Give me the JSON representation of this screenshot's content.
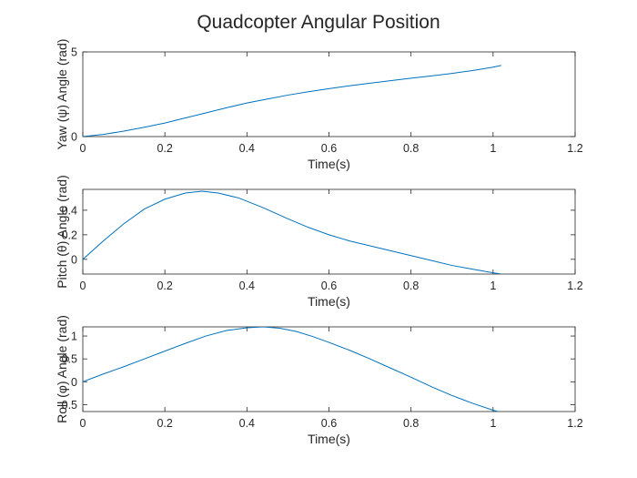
{
  "figure": {
    "title": "Quadcopter Angular Position"
  },
  "chart_data": [
    {
      "type": "line",
      "xlabel": "Time(s)",
      "ylabel": "Yaw (ψ) Angle (rad)",
      "xlim": [
        0,
        1.2
      ],
      "ylim": [
        0,
        5
      ],
      "xticks": [
        "0",
        "0.2",
        "0.4",
        "0.6",
        "0.8",
        "1",
        "1.2"
      ],
      "xtick_values": [
        0,
        0.2,
        0.4,
        0.6,
        0.8,
        1.0,
        1.2
      ],
      "yticks": [
        "0",
        "5"
      ],
      "ytick_values": [
        0,
        5
      ],
      "grid": false,
      "color": "#0072BD",
      "series": [
        {
          "x": [
            0,
            0.05,
            0.1,
            0.15,
            0.2,
            0.25,
            0.3,
            0.35,
            0.4,
            0.45,
            0.5,
            0.55,
            0.6,
            0.65,
            0.7,
            0.75,
            0.8,
            0.85,
            0.9,
            0.95,
            1.0,
            1.02
          ],
          "y": [
            0,
            0.13,
            0.32,
            0.55,
            0.8,
            1.1,
            1.4,
            1.7,
            1.98,
            2.22,
            2.45,
            2.65,
            2.83,
            3.0,
            3.15,
            3.3,
            3.45,
            3.58,
            3.73,
            3.9,
            4.1,
            4.2
          ]
        }
      ]
    },
    {
      "type": "line",
      "xlabel": "Time(s)",
      "ylabel": "Pitch (θ) Angle (rad)",
      "xlim": [
        0,
        1.2
      ],
      "ylim": [
        -0.12,
        0.57
      ],
      "xticks": [
        "0",
        "0.2",
        "0.4",
        "0.6",
        "0.8",
        "1",
        "1.2"
      ],
      "xtick_values": [
        0,
        0.2,
        0.4,
        0.6,
        0.8,
        1.0,
        1.2
      ],
      "yticks": [
        "0",
        "0.2",
        "0.4"
      ],
      "ytick_values": [
        0,
        0.2,
        0.4
      ],
      "grid": false,
      "color": "#0072BD",
      "series": [
        {
          "x": [
            0,
            0.05,
            0.1,
            0.15,
            0.2,
            0.25,
            0.29,
            0.33,
            0.38,
            0.44,
            0.5,
            0.55,
            0.6,
            0.65,
            0.7,
            0.75,
            0.8,
            0.85,
            0.9,
            0.95,
            1.0,
            1.02
          ],
          "y": [
            0,
            0.15,
            0.29,
            0.41,
            0.49,
            0.54,
            0.555,
            0.54,
            0.5,
            0.42,
            0.33,
            0.26,
            0.2,
            0.15,
            0.11,
            0.07,
            0.03,
            -0.01,
            -0.05,
            -0.08,
            -0.11,
            -0.12
          ]
        }
      ]
    },
    {
      "type": "line",
      "xlabel": "Time(s)",
      "ylabel": "Roll (φ) Angle (rad)",
      "xlim": [
        0,
        1.2
      ],
      "ylim": [
        -0.65,
        1.2
      ],
      "xticks": [
        "0",
        "0.2",
        "0.4",
        "0.6",
        "0.8",
        "1",
        "1.2"
      ],
      "xtick_values": [
        0,
        0.2,
        0.4,
        0.6,
        0.8,
        1.0,
        1.2
      ],
      "yticks": [
        "-0.5",
        "0",
        "0.5",
        "1"
      ],
      "ytick_values": [
        -0.5,
        0,
        0.5,
        1
      ],
      "grid": false,
      "color": "#0072BD",
      "series": [
        {
          "x": [
            0,
            0.05,
            0.1,
            0.15,
            0.2,
            0.25,
            0.3,
            0.35,
            0.4,
            0.44,
            0.48,
            0.52,
            0.56,
            0.6,
            0.65,
            0.7,
            0.75,
            0.8,
            0.85,
            0.9,
            0.95,
            1.0,
            1.02
          ],
          "y": [
            0,
            0.17,
            0.33,
            0.5,
            0.67,
            0.84,
            1.0,
            1.12,
            1.18,
            1.2,
            1.17,
            1.1,
            0.99,
            0.86,
            0.69,
            0.5,
            0.3,
            0.1,
            -0.11,
            -0.3,
            -0.47,
            -0.62,
            -0.67
          ]
        }
      ]
    }
  ]
}
